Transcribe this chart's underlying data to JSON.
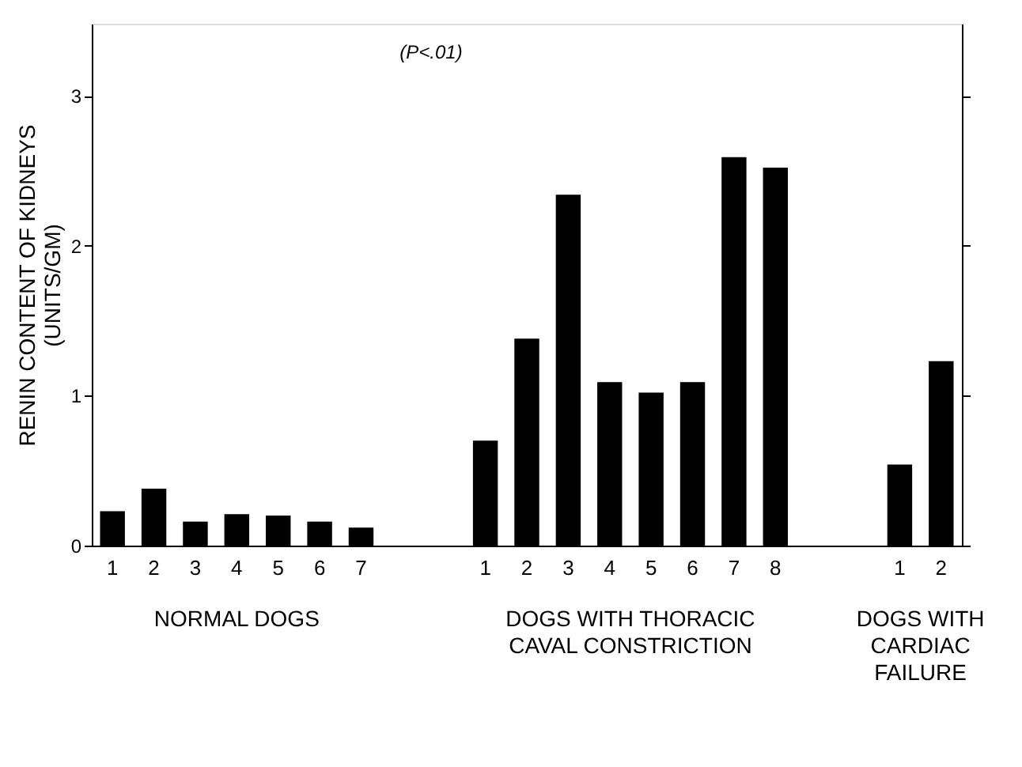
{
  "chart_data": {
    "type": "bar",
    "ylabel": "RENIN CONTENT OF KIDNEYS\n(UNITS/GM)",
    "categories": [
      "1",
      "2",
      "3",
      "4",
      "5",
      "6",
      "7",
      null,
      null,
      "1",
      "2",
      "3",
      "4",
      "5",
      "6",
      "7",
      "8",
      null,
      null,
      "1",
      "2"
    ],
    "values": [
      0.23,
      0.38,
      0.16,
      0.21,
      0.2,
      0.16,
      0.12,
      null,
      null,
      0.7,
      1.38,
      2.34,
      1.09,
      1.02,
      1.09,
      2.59,
      2.52,
      null,
      null,
      0.54,
      1.23
    ],
    "color": "#000000",
    "ylim": [
      0,
      3.48
    ],
    "yticks": [
      0,
      1,
      2,
      3
    ],
    "grid": false,
    "annotations": [
      "(P<.01)",
      "NORMAL DOGS",
      "DOGS WITH THORACIC\nCAVAL CONSTRICTION",
      "DOGS WITH\nCARDIAC\nFAILURE"
    ]
  }
}
